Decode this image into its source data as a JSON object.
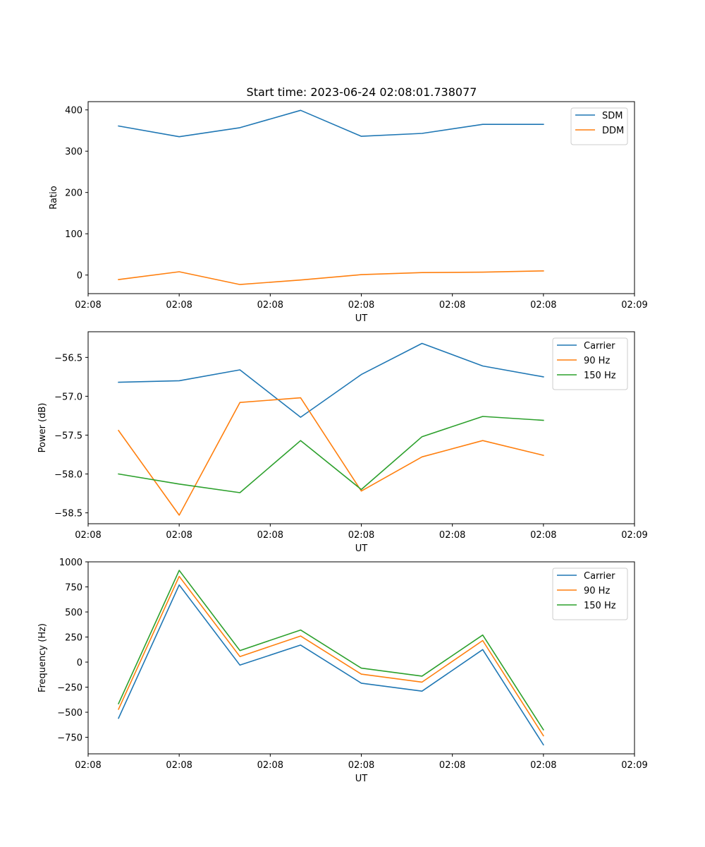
{
  "figure": {
    "title": "Start time: 2023-06-24 02:08:01.738077"
  },
  "chart_data": [
    {
      "type": "line",
      "xlabel": "UT",
      "ylabel": "Ratio",
      "xlim": [
        0,
        9
      ],
      "x": [
        0.5,
        1.5,
        2.5,
        3.5,
        4.5,
        5.5,
        6.5,
        7.5
      ],
      "x_ticks": [
        0,
        1.5,
        3,
        4.5,
        6,
        7.5,
        9
      ],
      "x_tick_labels": [
        "02:08",
        "02:08",
        "02:08",
        "02:08",
        "02:08",
        "02:08",
        "02:09"
      ],
      "ylim": [
        -45,
        420
      ],
      "y_ticks": [
        0,
        100,
        200,
        300,
        400
      ],
      "y_tick_labels": [
        "0",
        "100",
        "200",
        "300",
        "400"
      ],
      "legend": "upper right",
      "grid": false,
      "series": [
        {
          "name": "SDM",
          "color": "#1f77b4",
          "values": [
            361,
            335,
            357,
            399,
            336,
            343,
            365,
            365
          ]
        },
        {
          "name": "DDM",
          "color": "#ff7f0e",
          "values": [
            -11,
            8,
            -23,
            -12,
            1,
            6,
            7,
            10
          ]
        }
      ]
    },
    {
      "type": "line",
      "xlabel": "UT",
      "ylabel": "Power (dB)",
      "xlim": [
        0,
        9
      ],
      "x": [
        0.5,
        1.5,
        2.5,
        3.5,
        4.5,
        5.5,
        6.5,
        7.5
      ],
      "x_ticks": [
        0,
        1.5,
        3,
        4.5,
        6,
        7.5,
        9
      ],
      "x_tick_labels": [
        "02:08",
        "02:08",
        "02:08",
        "02:08",
        "02:08",
        "02:08",
        "02:09"
      ],
      "ylim": [
        -58.64,
        -56.17
      ],
      "y_ticks": [
        -56.5,
        -57.0,
        -57.5,
        -58.0,
        -58.5
      ],
      "y_tick_labels": [
        "−56.5",
        "−57.0",
        "−57.5",
        "−58.0",
        "−58.5"
      ],
      "legend": "upper right",
      "grid": false,
      "series": [
        {
          "name": "Carrier",
          "color": "#1f77b4",
          "values": [
            -56.82,
            -56.8,
            -56.66,
            -57.27,
            -56.72,
            -56.32,
            -56.61,
            -56.75
          ]
        },
        {
          "name": "90 Hz",
          "color": "#ff7f0e",
          "values": [
            -57.44,
            -58.53,
            -57.08,
            -57.02,
            -58.22,
            -57.78,
            -57.57,
            -57.76
          ]
        },
        {
          "name": "150 Hz",
          "color": "#2ca02c",
          "values": [
            -58.0,
            -58.13,
            -58.24,
            -57.57,
            -58.2,
            -57.52,
            -57.26,
            -57.31
          ]
        }
      ]
    },
    {
      "type": "line",
      "xlabel": "UT",
      "ylabel": "Frequency (Hz)",
      "xlim": [
        0,
        9
      ],
      "x": [
        0.5,
        1.5,
        2.5,
        3.5,
        4.5,
        5.5,
        6.5,
        7.5
      ],
      "x_ticks": [
        0,
        1.5,
        3,
        4.5,
        6,
        7.5,
        9
      ],
      "x_tick_labels": [
        "02:08",
        "02:08",
        "02:08",
        "02:08",
        "02:08",
        "02:08",
        "02:09"
      ],
      "ylim": [
        -915,
        1000
      ],
      "y_ticks": [
        1000,
        750,
        500,
        250,
        0,
        -250,
        -500,
        -750
      ],
      "y_tick_labels": [
        "1000",
        "750",
        "500",
        "250",
        "0",
        "−250",
        "−500",
        "−750"
      ],
      "legend": "upper right",
      "grid": false,
      "series": [
        {
          "name": "Carrier",
          "color": "#1f77b4",
          "values": [
            -560,
            770,
            -30,
            170,
            -210,
            -290,
            125,
            -825
          ]
        },
        {
          "name": "90 Hz",
          "color": "#ff7f0e",
          "values": [
            -470,
            855,
            55,
            260,
            -120,
            -200,
            215,
            -735
          ]
        },
        {
          "name": "150 Hz",
          "color": "#2ca02c",
          "values": [
            -415,
            915,
            115,
            320,
            -60,
            -140,
            270,
            -675
          ]
        }
      ]
    }
  ]
}
